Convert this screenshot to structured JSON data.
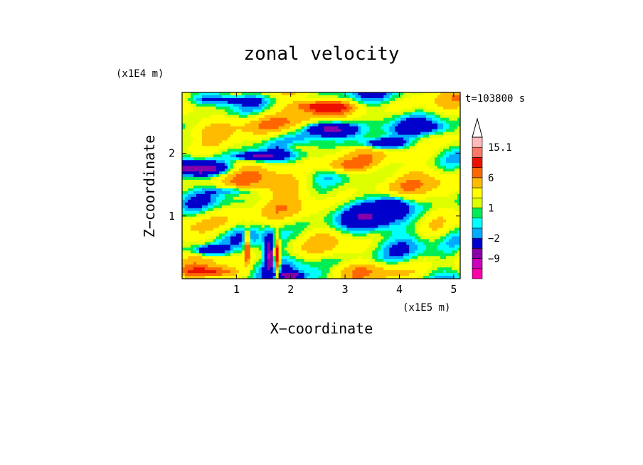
{
  "chart_data": {
    "type": "heatmap",
    "title": "zonal velocity",
    "xlabel": "X−coordinate",
    "ylabel": "Z−coordinate",
    "x_unit": "(x1E5 m)",
    "y_unit": "(x1E4 m)",
    "time_label": "t=103800 s",
    "xlim": [
      0,
      5.12
    ],
    "ylim": [
      0,
      2.97
    ],
    "x_ticks": [
      1,
      2,
      3,
      4,
      5
    ],
    "y_ticks": [
      1,
      2
    ],
    "x_tick_labels": [
      "1",
      "2",
      "3",
      "4",
      "5"
    ],
    "y_tick_labels": [
      "1",
      "2"
    ],
    "colorbar": {
      "levels": [
        -16,
        -12,
        -9,
        -6,
        -2,
        -1,
        0,
        1,
        2,
        4,
        6,
        8,
        12,
        15.1
      ],
      "colors": [
        "#ff00aa",
        "#cc00bb",
        "#8800aa",
        "#0000cc",
        "#00aaff",
        "#00ffff",
        "#00ee55",
        "#ddff00",
        "#ffff00",
        "#ffbb00",
        "#ff6600",
        "#ee1100",
        "#ff7766",
        "#ffbbbb"
      ],
      "labels": [
        "15.1",
        "6",
        "1",
        "−2",
        "−9"
      ],
      "label_values": [
        15.1,
        6,
        1,
        -2,
        -9
      ],
      "extend": "max"
    },
    "field_features": [
      {
        "x": 2.7,
        "z": 2.4,
        "sx": 0.45,
        "sz": 0.13,
        "v": -12
      },
      {
        "x": 3.7,
        "z": 2.15,
        "sx": 0.4,
        "sz": 0.09,
        "v": -9
      },
      {
        "x": 0.4,
        "z": 1.75,
        "sx": 0.5,
        "sz": 0.11,
        "v": -10
      },
      {
        "x": 1.4,
        "z": 1.95,
        "sx": 0.4,
        "sz": 0.07,
        "v": -8
      },
      {
        "x": 1.5,
        "z": 2.5,
        "sx": 0.9,
        "sz": 0.2,
        "v": 6
      },
      {
        "x": 0.7,
        "z": 2.85,
        "sx": 0.8,
        "sz": 0.08,
        "v": -4
      },
      {
        "x": 2.6,
        "z": 2.75,
        "sx": 0.6,
        "sz": 0.1,
        "v": 8
      },
      {
        "x": 2.1,
        "z": 2.1,
        "sx": 0.3,
        "sz": 0.1,
        "v": 4
      },
      {
        "x": 4.7,
        "z": 1.8,
        "sx": 0.6,
        "sz": 0.4,
        "v": 3
      },
      {
        "x": 3.5,
        "z": 0.95,
        "sx": 0.7,
        "sz": 0.25,
        "v": -3
      },
      {
        "x": 2.9,
        "z": 0.65,
        "sx": 0.6,
        "sz": 0.18,
        "v": 0
      },
      {
        "x": 4.4,
        "z": 0.3,
        "sx": 0.6,
        "sz": 0.35,
        "v": 1.5
      },
      {
        "x": 0.7,
        "z": 0.9,
        "sx": 0.6,
        "sz": 0.3,
        "v": 3
      },
      {
        "x": 0.5,
        "z": 0.45,
        "sx": 0.3,
        "sz": 0.08,
        "v": -8
      },
      {
        "x": 1.6,
        "z": 0.4,
        "sx": 0.08,
        "sz": 0.25,
        "v": -10
      },
      {
        "x": 1.2,
        "z": 0.5,
        "sx": 0.05,
        "sz": 0.25,
        "v": 9
      },
      {
        "x": 1.75,
        "z": 0.3,
        "sx": 0.05,
        "sz": 0.35,
        "v": 10
      },
      {
        "x": 0.5,
        "z": 0.1,
        "sx": 0.5,
        "sz": 0.08,
        "v": 6
      },
      {
        "x": 2.0,
        "z": 0.05,
        "sx": 0.2,
        "sz": 0.05,
        "v": -8
      },
      {
        "x": 2.0,
        "z": 1.5,
        "sx": 1.2,
        "sz": 0.2,
        "v": 4
      },
      {
        "x": 4.2,
        "z": 2.7,
        "sx": 0.5,
        "sz": 0.15,
        "v": 1
      },
      {
        "x": 4.6,
        "z": 2.4,
        "sx": 0.4,
        "sz": 0.1,
        "v": -2.5
      },
      {
        "x": 0.2,
        "z": 2.2,
        "sx": 0.3,
        "sz": 0.15,
        "v": -3
      },
      {
        "x": 3.0,
        "z": 1.8,
        "sx": 0.5,
        "sz": 0.12,
        "v": 5
      },
      {
        "x": 5.0,
        "z": 0.8,
        "sx": 0.3,
        "sz": 0.3,
        "v": -3
      },
      {
        "x": 3.9,
        "z": 1.2,
        "sx": 0.3,
        "sz": 0.15,
        "v": -6
      },
      {
        "x": 0.9,
        "z": 1.4,
        "sx": 0.4,
        "sz": 0.06,
        "v": -4
      },
      {
        "x": 3.3,
        "z": 0.15,
        "sx": 0.8,
        "sz": 0.1,
        "v": 2
      }
    ]
  }
}
